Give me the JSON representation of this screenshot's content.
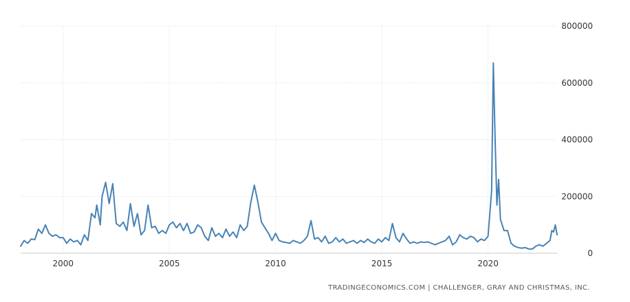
{
  "attribution": "TRADINGECONOMICS.COM | CHALLENGER, GRAY AND CHRISTMAS, INC.",
  "colors": {
    "series": "#4682b4",
    "grid": "#d8d8d8",
    "text": "#333333"
  },
  "chart_data": {
    "type": "line",
    "title": "",
    "xlabel": "",
    "ylabel": "",
    "xlim": [
      "1998-01",
      "2023-04"
    ],
    "ylim": [
      0,
      800000
    ],
    "grid": true,
    "legend": "none",
    "x_ticks": [
      "2000",
      "2005",
      "2010",
      "2015",
      "2020"
    ],
    "y_ticks": [
      "0",
      "200000",
      "400000",
      "600000",
      "800000"
    ],
    "y_axis_position": "right",
    "series": [
      {
        "color": "#4682b4",
        "points": [
          [
            "1998-01",
            25000
          ],
          [
            "1998-03",
            45000
          ],
          [
            "1998-05",
            35000
          ],
          [
            "1998-07",
            50000
          ],
          [
            "1998-09",
            48000
          ],
          [
            "1998-11",
            85000
          ],
          [
            "1999-01",
            70000
          ],
          [
            "1999-03",
            100000
          ],
          [
            "1999-05",
            70000
          ],
          [
            "1999-07",
            60000
          ],
          [
            "1999-09",
            65000
          ],
          [
            "1999-11",
            55000
          ],
          [
            "2000-01",
            55000
          ],
          [
            "2000-03",
            35000
          ],
          [
            "2000-05",
            50000
          ],
          [
            "2000-07",
            40000
          ],
          [
            "2000-09",
            45000
          ],
          [
            "2000-11",
            30000
          ],
          [
            "2001-01",
            65000
          ],
          [
            "2001-03",
            45000
          ],
          [
            "2001-05",
            140000
          ],
          [
            "2001-07",
            125000
          ],
          [
            "2001-08",
            170000
          ],
          [
            "2001-10",
            100000
          ],
          [
            "2001-11",
            200000
          ],
          [
            "2002-01",
            250000
          ],
          [
            "2002-03",
            175000
          ],
          [
            "2002-05",
            245000
          ],
          [
            "2002-07",
            105000
          ],
          [
            "2002-09",
            95000
          ],
          [
            "2002-11",
            110000
          ],
          [
            "2003-01",
            80000
          ],
          [
            "2003-03",
            175000
          ],
          [
            "2003-05",
            95000
          ],
          [
            "2003-07",
            140000
          ],
          [
            "2003-09",
            65000
          ],
          [
            "2003-11",
            80000
          ],
          [
            "2004-01",
            170000
          ],
          [
            "2004-03",
            90000
          ],
          [
            "2004-05",
            95000
          ],
          [
            "2004-07",
            70000
          ],
          [
            "2004-09",
            80000
          ],
          [
            "2004-11",
            70000
          ],
          [
            "2005-01",
            100000
          ],
          [
            "2005-03",
            110000
          ],
          [
            "2005-05",
            90000
          ],
          [
            "2005-07",
            105000
          ],
          [
            "2005-09",
            80000
          ],
          [
            "2005-11",
            105000
          ],
          [
            "2006-01",
            70000
          ],
          [
            "2006-03",
            75000
          ],
          [
            "2006-05",
            100000
          ],
          [
            "2006-07",
            90000
          ],
          [
            "2006-09",
            60000
          ],
          [
            "2006-11",
            45000
          ],
          [
            "2007-01",
            90000
          ],
          [
            "2007-03",
            60000
          ],
          [
            "2007-05",
            70000
          ],
          [
            "2007-07",
            55000
          ],
          [
            "2007-09",
            85000
          ],
          [
            "2007-11",
            60000
          ],
          [
            "2008-01",
            75000
          ],
          [
            "2008-03",
            55000
          ],
          [
            "2008-05",
            100000
          ],
          [
            "2008-07",
            80000
          ],
          [
            "2008-09",
            95000
          ],
          [
            "2008-11",
            180000
          ],
          [
            "2009-01",
            240000
          ],
          [
            "2009-03",
            180000
          ],
          [
            "2009-05",
            110000
          ],
          [
            "2009-07",
            90000
          ],
          [
            "2009-09",
            70000
          ],
          [
            "2009-11",
            45000
          ],
          [
            "2010-01",
            70000
          ],
          [
            "2010-03",
            45000
          ],
          [
            "2010-05",
            40000
          ],
          [
            "2010-07",
            38000
          ],
          [
            "2010-09",
            35000
          ],
          [
            "2010-11",
            45000
          ],
          [
            "2011-01",
            40000
          ],
          [
            "2011-03",
            35000
          ],
          [
            "2011-05",
            45000
          ],
          [
            "2011-07",
            60000
          ],
          [
            "2011-09",
            115000
          ],
          [
            "2011-11",
            50000
          ],
          [
            "2012-01",
            55000
          ],
          [
            "2012-03",
            40000
          ],
          [
            "2012-05",
            60000
          ],
          [
            "2012-07",
            35000
          ],
          [
            "2012-09",
            40000
          ],
          [
            "2012-11",
            55000
          ],
          [
            "2013-01",
            40000
          ],
          [
            "2013-03",
            50000
          ],
          [
            "2013-05",
            35000
          ],
          [
            "2013-07",
            40000
          ],
          [
            "2013-09",
            45000
          ],
          [
            "2013-11",
            35000
          ],
          [
            "2014-01",
            45000
          ],
          [
            "2014-03",
            38000
          ],
          [
            "2014-05",
            50000
          ],
          [
            "2014-07",
            40000
          ],
          [
            "2014-09",
            35000
          ],
          [
            "2014-11",
            50000
          ],
          [
            "2015-01",
            40000
          ],
          [
            "2015-03",
            55000
          ],
          [
            "2015-05",
            45000
          ],
          [
            "2015-07",
            105000
          ],
          [
            "2015-09",
            55000
          ],
          [
            "2015-11",
            40000
          ],
          [
            "2016-01",
            70000
          ],
          [
            "2016-03",
            50000
          ],
          [
            "2016-05",
            35000
          ],
          [
            "2016-07",
            40000
          ],
          [
            "2016-09",
            35000
          ],
          [
            "2016-11",
            40000
          ],
          [
            "2017-01",
            38000
          ],
          [
            "2017-03",
            40000
          ],
          [
            "2017-05",
            35000
          ],
          [
            "2017-07",
            30000
          ],
          [
            "2017-09",
            35000
          ],
          [
            "2017-11",
            40000
          ],
          [
            "2018-01",
            45000
          ],
          [
            "2018-03",
            60000
          ],
          [
            "2018-05",
            30000
          ],
          [
            "2018-07",
            40000
          ],
          [
            "2018-09",
            65000
          ],
          [
            "2018-11",
            55000
          ],
          [
            "2019-01",
            50000
          ],
          [
            "2019-03",
            60000
          ],
          [
            "2019-05",
            55000
          ],
          [
            "2019-07",
            40000
          ],
          [
            "2019-09",
            50000
          ],
          [
            "2019-11",
            45000
          ],
          [
            "2020-01",
            60000
          ],
          [
            "2020-03",
            220000
          ],
          [
            "2020-04",
            670000
          ],
          [
            "2020-05",
            400000
          ],
          [
            "2020-06",
            170000
          ],
          [
            "2020-07",
            260000
          ],
          [
            "2020-08",
            120000
          ],
          [
            "2020-10",
            80000
          ],
          [
            "2020-12",
            80000
          ],
          [
            "2021-02",
            35000
          ],
          [
            "2021-04",
            25000
          ],
          [
            "2021-06",
            20000
          ],
          [
            "2021-08",
            18000
          ],
          [
            "2021-10",
            20000
          ],
          [
            "2021-12",
            15000
          ],
          [
            "2022-02",
            15000
          ],
          [
            "2022-04",
            25000
          ],
          [
            "2022-06",
            30000
          ],
          [
            "2022-08",
            25000
          ],
          [
            "2022-10",
            35000
          ],
          [
            "2022-12",
            45000
          ],
          [
            "2023-01",
            80000
          ],
          [
            "2023-02",
            75000
          ],
          [
            "2023-03",
            100000
          ],
          [
            "2023-04",
            65000
          ]
        ]
      }
    ]
  }
}
